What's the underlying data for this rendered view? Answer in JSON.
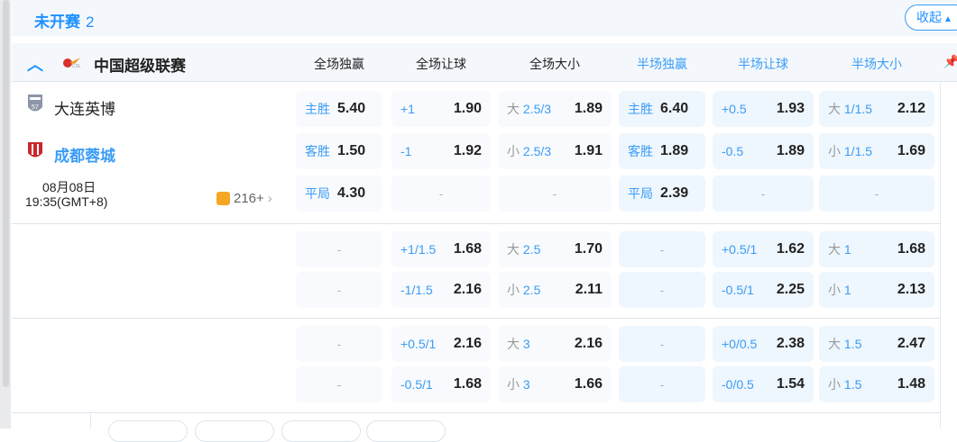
{
  "section": {
    "title": "未开赛",
    "count": "2",
    "collapse_label": "收起"
  },
  "league": {
    "name": "中国超级联赛",
    "columns": [
      "全场独赢",
      "全场让球",
      "全场大小",
      "半场独赢",
      "半场让球",
      "半场大小"
    ]
  },
  "match": {
    "home": "大连英博",
    "away": "成都蓉城",
    "date": "08月08日",
    "time": "19:35(GMT+8)",
    "markets": "216+"
  },
  "rows": [
    [
      [
        "主胜",
        "5.40"
      ],
      [
        "+1",
        "1.90"
      ],
      [
        "大 2.5/3",
        "1.89"
      ],
      [
        "主胜",
        "6.40"
      ],
      [
        "+0.5",
        "1.93"
      ],
      [
        "大 1/1.5",
        "2.12"
      ]
    ],
    [
      [
        "客胜",
        "1.50"
      ],
      [
        "-1",
        "1.92"
      ],
      [
        "小 2.5/3",
        "1.91"
      ],
      [
        "客胜",
        "1.89"
      ],
      [
        "-0.5",
        "1.89"
      ],
      [
        "小 1/1.5",
        "1.69"
      ]
    ],
    [
      [
        "平局",
        "4.30"
      ],
      [
        "-",
        ""
      ],
      [
        "-",
        ""
      ],
      [
        "平局",
        "2.39"
      ],
      [
        "-",
        ""
      ],
      [
        "-",
        ""
      ]
    ],
    [
      [
        "-",
        ""
      ],
      [
        "+1/1.5",
        "1.68"
      ],
      [
        "大 2.5",
        "1.70"
      ],
      [
        "-",
        ""
      ],
      [
        "+0.5/1",
        "1.62"
      ],
      [
        "大 1",
        "1.68"
      ]
    ],
    [
      [
        "-",
        ""
      ],
      [
        "-1/1.5",
        "2.16"
      ],
      [
        "小 2.5",
        "2.11"
      ],
      [
        "-",
        ""
      ],
      [
        "-0.5/1",
        "2.25"
      ],
      [
        "小 1",
        "2.13"
      ]
    ],
    [
      [
        "-",
        ""
      ],
      [
        "+0.5/1",
        "2.16"
      ],
      [
        "大 3",
        "2.16"
      ],
      [
        "-",
        ""
      ],
      [
        "+0/0.5",
        "2.38"
      ],
      [
        "大 1.5",
        "2.47"
      ]
    ],
    [
      [
        "-",
        ""
      ],
      [
        "-0.5/1",
        "1.68"
      ],
      [
        "小 3",
        "1.66"
      ],
      [
        "-",
        ""
      ],
      [
        "-0/0.5",
        "1.54"
      ],
      [
        "小 1.5",
        "1.48"
      ]
    ]
  ]
}
